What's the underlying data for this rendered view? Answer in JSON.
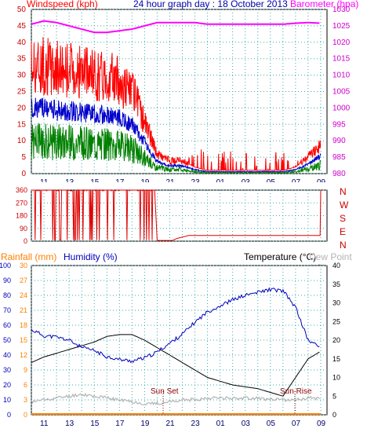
{
  "header": {
    "wind_label": "Windspeed (kph)",
    "title": "24 hour graph day : 18 October 2013",
    "baro_label": "Barometer (hpa)"
  },
  "mid": {
    "compass": [
      "N",
      "W",
      "S",
      "E",
      "N"
    ]
  },
  "bottom_header": {
    "rain_label": "Rainfall (mm)",
    "humidity_label": "Humidity (%)",
    "temp_label": "Temperature (°C)",
    "dew_label": "Dew Point (°C)"
  },
  "annotations": {
    "sunset": "Sun Set",
    "sunrise": "Sun Rise"
  },
  "colors": {
    "wind": "#ff0000",
    "gust": "#ff0000",
    "avg": "#0000cc",
    "low": "#008000",
    "baro": "#ff00ff",
    "dir": "#e00000",
    "humidity": "#0000bb",
    "temp": "#000000",
    "dew": "#b4b4b4",
    "rain": "#ff8000",
    "grid": "#3aa8a8"
  },
  "chart_data": [
    {
      "type": "line",
      "title": "24 hour graph day : 18 October 2013",
      "x_ticks": [
        "11",
        "13",
        "15",
        "17",
        "19",
        "21",
        "23",
        "01",
        "03",
        "05",
        "07",
        "09"
      ],
      "y_left_label": "Windspeed (kph)",
      "y_left_ticks": [
        0,
        5,
        10,
        15,
        20,
        25,
        30,
        35,
        40,
        45,
        50
      ],
      "ylim_left": [
        0,
        50
      ],
      "y_right_label": "Barometer (hpa)",
      "y_right_ticks": [
        980,
        985,
        990,
        995,
        1000,
        1005,
        1010,
        1015,
        1020,
        1025,
        1030
      ],
      "ylim_right": [
        980,
        1030
      ],
      "grid": true,
      "series": [
        {
          "name": "Windspeed (kph)",
          "axis": "left",
          "color": "#ff0000",
          "x": [
            10,
            11,
            12,
            13,
            14,
            15,
            16,
            17,
            18,
            19,
            20,
            21,
            22,
            23,
            24,
            25,
            26,
            27,
            28,
            29,
            30,
            31,
            32,
            33
          ],
          "y": [
            33,
            33,
            32,
            32,
            31,
            30,
            30,
            28,
            25,
            16,
            6,
            4,
            4,
            2,
            1,
            1,
            1,
            1,
            1,
            1,
            1,
            2,
            5,
            9
          ]
        },
        {
          "name": "Barometer (hpa)",
          "axis": "right",
          "color": "#ff00ff",
          "x": [
            10,
            11,
            12,
            13,
            14,
            15,
            16,
            17,
            18,
            19,
            20,
            21,
            22,
            23,
            24,
            25,
            26,
            27,
            28,
            29,
            30,
            31,
            32,
            33
          ],
          "y": [
            1025.5,
            1026.5,
            1026,
            1025,
            1024,
            1023,
            1023,
            1023.5,
            1024,
            1025,
            1026,
            1026,
            1026,
            1026,
            1025.5,
            1025.5,
            1025.5,
            1025.5,
            1025.5,
            1025.5,
            1025.5,
            1025.8,
            1026,
            1025.8
          ]
        }
      ]
    },
    {
      "type": "line",
      "y_ticks": [
        0,
        90,
        180,
        270,
        360
      ],
      "ylim": [
        0,
        360
      ],
      "series": [
        {
          "name": "Wind direction",
          "color": "#e00000",
          "x": [
            10,
            19.8,
            20,
            21.2,
            21.6,
            22.5,
            33
          ],
          "y": [
            360,
            360,
            5,
            5,
            20,
            40,
            40
          ]
        }
      ]
    },
    {
      "type": "line",
      "x_ticks": [
        "11",
        "13",
        "15",
        "17",
        "19",
        "21",
        "23",
        "01",
        "03",
        "05",
        "07",
        "09"
      ],
      "y_left_ticks_humidity": [
        0,
        10,
        20,
        30,
        40,
        50,
        60,
        70,
        80,
        90,
        100
      ],
      "y_left_ticks_rain": [
        0,
        3,
        6,
        9,
        12,
        15,
        18,
        21,
        24,
        27,
        30
      ],
      "y_right_ticks_temp": [
        0,
        5,
        10,
        15,
        20,
        25,
        30,
        35,
        40
      ],
      "ylim_temp": [
        0,
        40
      ],
      "ylim_humidity": [
        0,
        100
      ],
      "ylim_rain": [
        0,
        30
      ],
      "grid": true,
      "series": [
        {
          "name": "Temperature (°C)",
          "axis": "right",
          "color": "#000000",
          "x": [
            10,
            11,
            12,
            13,
            14,
            15,
            16,
            17,
            18,
            19,
            20,
            21,
            22,
            23,
            24,
            25,
            26,
            27,
            28,
            29,
            30,
            31,
            32,
            33
          ],
          "y": [
            14,
            15.5,
            16.5,
            17.5,
            18.5,
            19.5,
            21,
            21.5,
            21.5,
            20,
            18,
            16,
            14,
            12,
            10,
            9,
            8,
            7.5,
            7,
            6,
            5,
            10,
            15,
            17
          ]
        },
        {
          "name": "Humidity (%)",
          "axis": "left",
          "color": "#0000bb",
          "x": [
            10,
            11,
            12,
            13,
            14,
            15,
            16,
            17,
            18,
            19,
            20,
            21,
            22,
            23,
            24,
            25,
            26,
            27,
            28,
            29,
            30,
            31,
            32,
            33
          ],
          "y": [
            57,
            53,
            52,
            50,
            45,
            43,
            39,
            37,
            36,
            38,
            42,
            48,
            54,
            62,
            69,
            73,
            77,
            80,
            82,
            84,
            83,
            72,
            50,
            45
          ]
        },
        {
          "name": "Dew Point (°C)",
          "axis": "right",
          "color": "#b4b4b4",
          "x": [
            10,
            11,
            12,
            13,
            14,
            15,
            16,
            17,
            18,
            19,
            20,
            21,
            22,
            23,
            24,
            25,
            26,
            27,
            28,
            29,
            30,
            31,
            32,
            33
          ],
          "y": [
            3.5,
            4,
            4.5,
            5,
            5.5,
            5,
            4.5,
            4,
            3.5,
            3,
            3,
            3.5,
            4,
            4,
            4.5,
            4.5,
            4.5,
            4.5,
            4.5,
            4,
            4,
            4,
            4.5,
            4.5
          ]
        },
        {
          "name": "Rainfall (mm)",
          "axis": "left",
          "color": "#ff8000",
          "x": [
            10,
            33
          ],
          "y": [
            0,
            0
          ]
        }
      ]
    }
  ]
}
